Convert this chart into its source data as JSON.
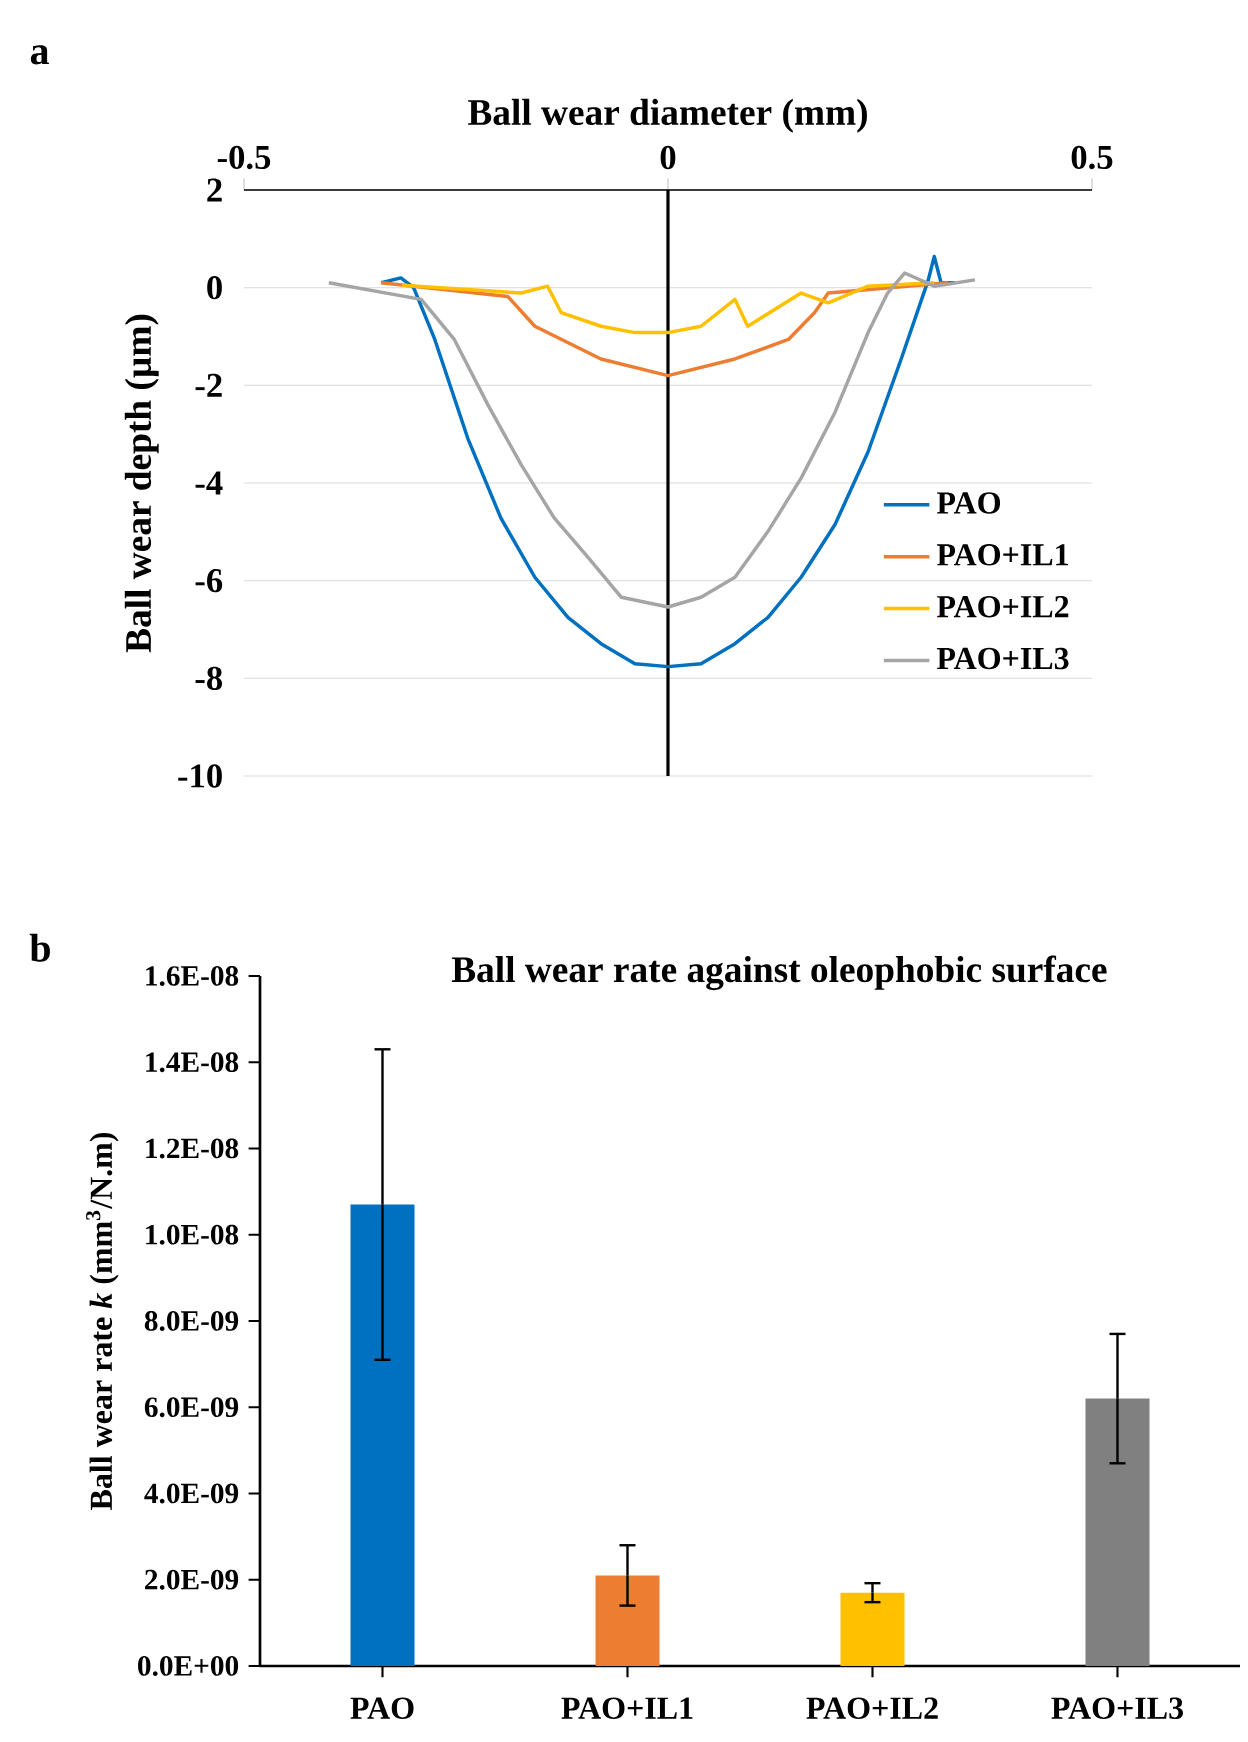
{
  "chart_data": [
    {
      "type": "line",
      "xlabel": "Ball wear diameter (mm)",
      "ylabel": "Ball wear depth (µm)",
      "annotations": [
        "a"
      ],
      "xlim": [
        -0.5,
        0.5
      ],
      "xticks": [
        -0.5,
        0,
        0.5
      ],
      "ylim": [
        -10,
        2
      ],
      "yticks": [
        -10,
        -8,
        -6,
        -4,
        -2,
        0,
        2
      ],
      "grid": "y",
      "legend": "right",
      "ref_lines": [
        {
          "axis": "x",
          "value": 0,
          "color": "#000000"
        }
      ],
      "series": [
        {
          "name": "PAO",
          "color": "#0070c0",
          "x": [
            -0.338,
            -0.315,
            -0.3,
            -0.275,
            -0.236,
            -0.197,
            -0.157,
            -0.118,
            -0.079,
            -0.039,
            0,
            0.039,
            0.079,
            0.118,
            0.157,
            0.197,
            0.236,
            0.275,
            0.307,
            0.314,
            0.322,
            0.338
          ],
          "values": [
            0.1,
            0.2,
            0,
            -1.06,
            -3.09,
            -4.72,
            -5.93,
            -6.75,
            -7.29,
            -7.7,
            -7.76,
            -7.7,
            -7.29,
            -6.75,
            -5.93,
            -4.85,
            -3.36,
            -1.46,
            0.16,
            0.64,
            0.1,
            0.1
          ]
        },
        {
          "name": "PAO+IL1",
          "color": "#ed7d31",
          "x": [
            -0.338,
            -0.189,
            -0.157,
            -0.079,
            0,
            0.079,
            0.142,
            0.173,
            0.189,
            0.33
          ],
          "values": [
            0.1,
            -0.18,
            -0.79,
            -1.46,
            -1.8,
            -1.46,
            -1.06,
            -0.51,
            -0.11,
            0.1
          ]
        },
        {
          "name": "PAO+IL2",
          "color": "#ffc000",
          "x": [
            -0.314,
            -0.173,
            -0.142,
            -0.126,
            -0.079,
            -0.039,
            0,
            0.039,
            0.079,
            0.094,
            0.157,
            0.189,
            0.236,
            0.314
          ],
          "values": [
            0.05,
            -0.11,
            0.03,
            -0.51,
            -0.79,
            -0.92,
            -0.92,
            -0.79,
            -0.24,
            -0.79,
            -0.11,
            -0.31,
            0.03,
            0.1
          ]
        },
        {
          "name": "PAO+IL3",
          "color": "#a5a5a5",
          "x": [
            -0.4,
            -0.291,
            -0.252,
            -0.212,
            -0.173,
            -0.134,
            -0.094,
            -0.055,
            0,
            0.039,
            0.079,
            0.118,
            0.157,
            0.197,
            0.236,
            0.259,
            0.279,
            0.314,
            0.362
          ],
          "values": [
            0.1,
            -0.24,
            -1.06,
            -2.41,
            -3.63,
            -4.72,
            -5.53,
            -6.34,
            -6.54,
            -6.34,
            -5.93,
            -4.99,
            -3.9,
            -2.55,
            -0.92,
            -0.11,
            0.3,
            0.03,
            0.16
          ]
        }
      ]
    },
    {
      "type": "bar",
      "title": "Ball wear rate against oleophobic surface",
      "ylabel": "Ball wear rate *k* (mm$^{3}$/N.m)",
      "annotations": [
        "b"
      ],
      "categories": [
        "PAO",
        "PAO+IL1",
        "PAO+IL2",
        "PAO+IL3"
      ],
      "values": [
        1.07e-08,
        2.1e-09,
        1.7e-09,
        6.2e-09
      ],
      "errors": [
        3.6e-09,
        7e-10,
        2.2e-10,
        1.5e-09
      ],
      "colors": [
        "#0070c0",
        "#ed7d31",
        "#ffc000",
        "#808080"
      ],
      "ylim": [
        0,
        1.6e-08
      ],
      "yticks": [
        {
          "value": 0,
          "label": "0.0E+00"
        },
        {
          "value": 2e-09,
          "label": "2.0E-09"
        },
        {
          "value": 4e-09,
          "label": "4.0E-09"
        },
        {
          "value": 6e-09,
          "label": "6.0E-09"
        },
        {
          "value": 8e-09,
          "label": "8.0E-09"
        },
        {
          "value": 1e-08,
          "label": "1.0E-08"
        },
        {
          "value": 1.2e-08,
          "label": "1.2E-08"
        },
        {
          "value": 1.4e-08,
          "label": "1.4E-08"
        },
        {
          "value": 1.6e-08,
          "label": "1.6E-08"
        }
      ]
    }
  ]
}
